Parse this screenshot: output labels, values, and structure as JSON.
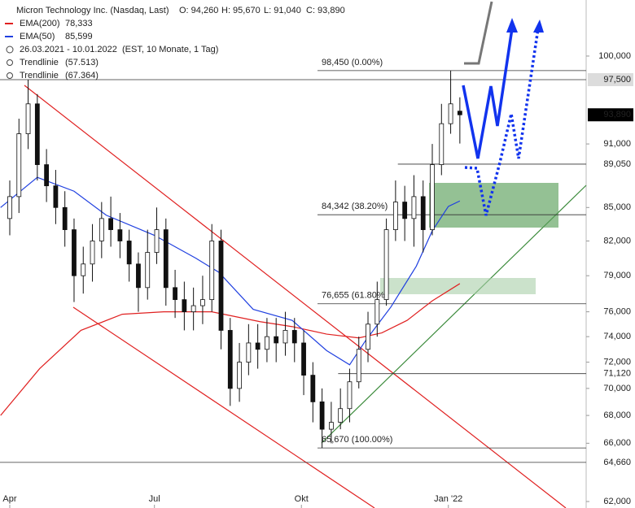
{
  "chart_data": {
    "type": "candlestick",
    "title": "Micron Technology Inc. (Nasdaq, Last)",
    "ohlc_labels": [
      "O: 94,260",
      "H: 95,670",
      "L: 91,040",
      "C: 93,890"
    ],
    "period": "26.03.2021 - 10.01.2022",
    "period_note": "(EST, 10 Monate, 1 Tag)",
    "log_scale": true,
    "xlim": [
      -4.25,
      251
    ],
    "xticks": [
      {
        "value": 0,
        "label": "Apr"
      },
      {
        "value": 63,
        "label": "Jul"
      },
      {
        "value": 127,
        "label": "Okt"
      },
      {
        "value": 191,
        "label": "Jan '22"
      }
    ],
    "ylim": [
      61570,
      106200
    ],
    "yticks": [
      {
        "value": 62000,
        "label": "62,000"
      },
      {
        "value": 66000,
        "label": "66,000"
      },
      {
        "value": 68000,
        "label": "68,000"
      },
      {
        "value": 70000,
        "label": "70,000"
      },
      {
        "value": 72000,
        "label": "72,000"
      },
      {
        "value": 74000,
        "label": "74,000"
      },
      {
        "value": 76000,
        "label": "76,000"
      },
      {
        "value": 79000,
        "label": "79,000"
      },
      {
        "value": 82000,
        "label": "82,000"
      },
      {
        "value": 85000,
        "label": "85,000"
      },
      {
        "value": 91000,
        "label": "91,000"
      },
      {
        "value": 100000,
        "label": "100,000"
      }
    ],
    "candles": {
      "x": [
        0,
        4,
        8,
        12,
        16,
        20,
        24,
        28,
        32,
        36,
        40,
        44,
        48,
        52,
        56,
        60,
        64,
        68,
        72,
        76,
        80,
        84,
        88,
        92,
        96,
        100,
        104,
        108,
        112,
        116,
        120,
        124,
        128,
        132,
        136,
        140,
        144,
        148,
        152,
        156,
        160,
        164,
        168,
        172,
        176,
        180,
        184,
        188,
        192,
        196
      ],
      "open": [
        84000,
        86000,
        92000,
        95000,
        89000,
        87000,
        85000,
        83000,
        79000,
        80000,
        82000,
        84000,
        83000,
        82000,
        80000,
        78000,
        81000,
        83000,
        78000,
        77000,
        76000,
        76500,
        77000,
        82000,
        74500,
        70000,
        72000,
        73500,
        73000,
        74000,
        73500,
        74500,
        73500,
        71000,
        69000,
        67000,
        67500,
        68500,
        70500,
        73000,
        75000,
        77000,
        83000,
        85500,
        84000,
        86000,
        83000,
        89000,
        93000,
        94260
      ],
      "high": [
        87500,
        93500,
        97500,
        96000,
        90500,
        88500,
        86500,
        84000,
        81500,
        83500,
        85500,
        86000,
        84500,
        83000,
        81000,
        83000,
        85000,
        84000,
        79500,
        78500,
        78000,
        79000,
        83500,
        83000,
        75500,
        73500,
        75000,
        75000,
        75500,
        75500,
        76000,
        75500,
        74500,
        72000,
        70000,
        69000,
        70000,
        71500,
        74000,
        76000,
        78500,
        84000,
        87500,
        87000,
        88000,
        87500,
        91000,
        95000,
        98450,
        95670
      ],
      "low": [
        82500,
        84500,
        90500,
        87500,
        85500,
        83500,
        81500,
        76800,
        77500,
        78500,
        80500,
        81500,
        80500,
        78500,
        76000,
        77000,
        80000,
        76500,
        75500,
        74500,
        74500,
        75000,
        76000,
        73000,
        68700,
        69000,
        71000,
        71500,
        72000,
        72000,
        72500,
        72000,
        69500,
        67500,
        65670,
        66000,
        67000,
        67500,
        70000,
        72000,
        74000,
        76500,
        82000,
        82000,
        81500,
        81000,
        82500,
        88000,
        92000,
        91040
      ],
      "close": [
        86000,
        92000,
        95000,
        89000,
        87000,
        85000,
        83000,
        79000,
        80000,
        82000,
        84000,
        83000,
        82000,
        80000,
        78000,
        81000,
        83000,
        78000,
        77000,
        76000,
        76500,
        77000,
        82000,
        74500,
        70000,
        72000,
        73500,
        73000,
        74000,
        73500,
        74500,
        73500,
        71000,
        69000,
        67000,
        67500,
        68500,
        70500,
        73000,
        75000,
        77000,
        83000,
        85500,
        84000,
        86000,
        83000,
        89000,
        93000,
        95000,
        93890
      ]
    },
    "series": [
      {
        "name": "EMA(200)",
        "color": "#e02020",
        "last_label": "78,333",
        "x": [
          -4,
          13,
          31,
          49,
          67,
          88,
          109,
          123,
          138,
          152,
          162,
          173,
          184,
          196
        ],
        "values": [
          68000,
          71500,
          74500,
          75800,
          76000,
          76000,
          75200,
          74800,
          74200,
          73900,
          74300,
          75300,
          76900,
          78333
        ]
      },
      {
        "name": "EMA(50)",
        "color": "#2040e0",
        "last_label": "85,599",
        "x": [
          -4,
          12,
          28,
          42,
          63,
          81,
          91,
          106,
          123,
          138,
          148,
          155,
          166,
          177,
          184,
          191,
          196
        ],
        "values": [
          85000,
          87800,
          86500,
          84300,
          82500,
          80500,
          79300,
          76200,
          75300,
          72900,
          71800,
          73700,
          76400,
          79800,
          82900,
          85100,
          85599
        ]
      }
    ],
    "trendlines": [
      {
        "name": "Trendlinie",
        "label": "(57.513)"
      },
      {
        "name": "Trendlinie",
        "label": "(67.364)"
      }
    ],
    "fib_levels": [
      {
        "value": 98450,
        "label": "98,450 (0.00%)"
      },
      {
        "value": 84342,
        "label": "84,342 (38.20%)"
      },
      {
        "value": 76655,
        "label": "76,655 (61.80%)"
      },
      {
        "value": 65670,
        "label": "65,670 (100.00%)"
      }
    ],
    "price_levels": [
      {
        "value": 97500,
        "label": "97,500",
        "color": "#dcdcdc",
        "text_color": "#000",
        "start": -4.25
      },
      {
        "value": 93890,
        "label": "93,890",
        "color": "#000",
        "text_color": "#fff",
        "start": null
      },
      {
        "value": 89050,
        "label": "89,050",
        "color": "#fff",
        "text_color": "#000",
        "start": 169
      },
      {
        "value": 71120,
        "label": "71,120",
        "color": "#fff",
        "text_color": "#000",
        "start": 143
      },
      {
        "value": 64660,
        "label": "64,660",
        "color": "#fff",
        "text_color": "#000",
        "start": -4.25
      }
    ]
  }
}
